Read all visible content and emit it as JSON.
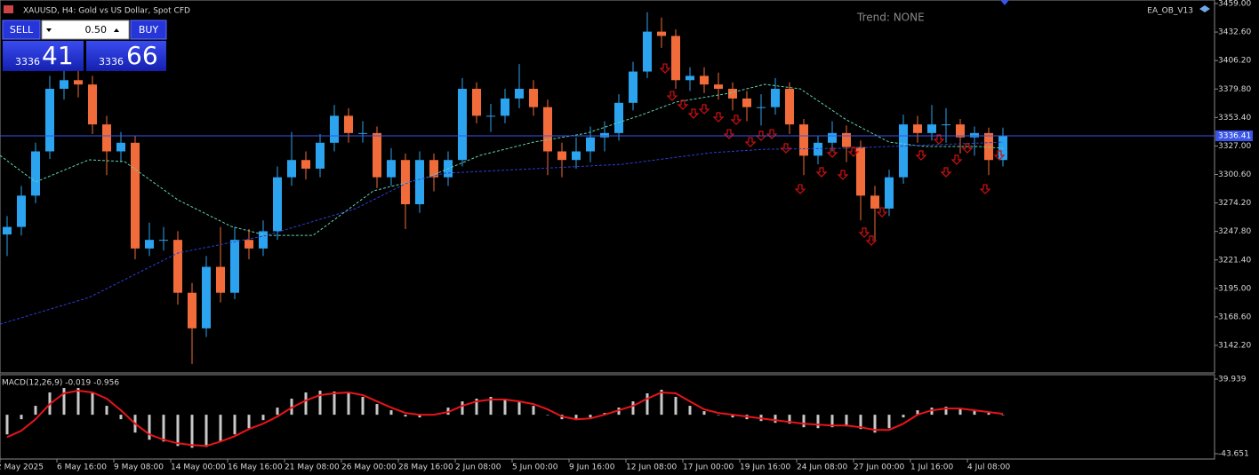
{
  "chart_data": [
    {
      "type": "candlestick",
      "title": "XAUUSD, H4:  Gold vs US Dollar, Spot CFD",
      "annotation": "Trend: NONE",
      "indicator_label": "EA_OB_V13",
      "xlim": [
        0,
        341.5
      ],
      "ylim": [
        3116.7,
        3462.3
      ],
      "yticks": [
        {
          "value": 3459,
          "label": "3459.00"
        },
        {
          "value": 3432.6,
          "label": "3432.60"
        },
        {
          "value": 3406.2,
          "label": "3406.20"
        },
        {
          "value": 3379.8,
          "label": "3379.80"
        },
        {
          "value": 3353.4,
          "label": "3353.40"
        },
        {
          "value": 3327,
          "label": "3327.00"
        },
        {
          "value": 3300.6,
          "label": "3300.60"
        },
        {
          "value": 3274.2,
          "label": "3274.20"
        },
        {
          "value": 3247.8,
          "label": "3247.80"
        },
        {
          "value": 3221.4,
          "label": "3221.40"
        },
        {
          "value": 3195,
          "label": "3195.00"
        },
        {
          "value": 3168.6,
          "label": "3168.60"
        },
        {
          "value": 3142.2,
          "label": "3142.20"
        }
      ],
      "series": [
        {
          "type": "candles",
          "up_color": "#2ba3ee",
          "down_color": "#f26b3a",
          "x": [
            2,
            6,
            10,
            14,
            18,
            22,
            26,
            30,
            34,
            38,
            42,
            46,
            50,
            54,
            58,
            62,
            66,
            70,
            74,
            78,
            82,
            86,
            90,
            94,
            98,
            102,
            106,
            110,
            114,
            118,
            122,
            126,
            130,
            134,
            138,
            142,
            146,
            150,
            154,
            158,
            162,
            166,
            170,
            174,
            178,
            182,
            186,
            190,
            194,
            198,
            202,
            206,
            210,
            214,
            218,
            222,
            226,
            230,
            234,
            238,
            242,
            246,
            250,
            254,
            258,
            262,
            266,
            270,
            274,
            278,
            282
          ],
          "open": [
            3245,
            3252,
            3281,
            3322,
            3380,
            3388,
            3384,
            3347,
            3322,
            3330,
            3232,
            3240,
            3240,
            3191,
            3158,
            3215,
            3191,
            3240,
            3232,
            3248,
            3298,
            3314,
            3306,
            3330,
            3355,
            3339,
            3339,
            3298,
            3314,
            3273,
            3314,
            3298,
            3314,
            3380,
            3355,
            3355,
            3371,
            3380,
            3363,
            3322,
            3314,
            3322,
            3335,
            3339,
            3367,
            3396,
            3433,
            3429,
            3388,
            3392,
            3384,
            3380,
            3371,
            3363,
            3363,
            3380,
            3347,
            3318,
            3330,
            3339,
            3326,
            3281,
            3269,
            3298,
            3347,
            3339,
            3347,
            3347,
            3335,
            3339,
            3314
          ],
          "high": [
            3262,
            3290,
            3330,
            3392,
            3400,
            3398,
            3392,
            3355,
            3340,
            3336,
            3256,
            3252,
            3248,
            3200,
            3225,
            3252,
            3252,
            3250,
            3258,
            3308,
            3340,
            3322,
            3338,
            3365,
            3362,
            3350,
            3345,
            3325,
            3320,
            3322,
            3320,
            3322,
            3390,
            3386,
            3366,
            3380,
            3403,
            3388,
            3370,
            3330,
            3335,
            3345,
            3350,
            3375,
            3405,
            3451,
            3446,
            3435,
            3400,
            3400,
            3395,
            3386,
            3378,
            3375,
            3390,
            3386,
            3352,
            3336,
            3350,
            3346,
            3332,
            3290,
            3305,
            3356,
            3355,
            3365,
            3362,
            3352,
            3345,
            3344,
            3344
          ],
          "low": [
            3225,
            3244,
            3274,
            3315,
            3370,
            3372,
            3338,
            3300,
            3312,
            3222,
            3225,
            3230,
            3180,
            3125,
            3150,
            3182,
            3185,
            3222,
            3225,
            3240,
            3290,
            3296,
            3298,
            3322,
            3330,
            3330,
            3288,
            3290,
            3250,
            3265,
            3285,
            3290,
            3308,
            3348,
            3340,
            3348,
            3362,
            3355,
            3300,
            3298,
            3306,
            3312,
            3322,
            3332,
            3360,
            3390,
            3418,
            3380,
            3378,
            3376,
            3370,
            3360,
            3350,
            3346,
            3356,
            3338,
            3300,
            3310,
            3322,
            3312,
            3258,
            3240,
            3262,
            3292,
            3330,
            3332,
            3330,
            3320,
            3318,
            3300,
            3308
          ],
          "close": [
            3252,
            3281,
            3322,
            3380,
            3388,
            3384,
            3347,
            3322,
            3330,
            3232,
            3240,
            3240,
            3191,
            3158,
            3215,
            3191,
            3240,
            3232,
            3248,
            3298,
            3314,
            3306,
            3330,
            3355,
            3339,
            3339,
            3298,
            3314,
            3273,
            3314,
            3298,
            3314,
            3380,
            3355,
            3355,
            3371,
            3380,
            3363,
            3322,
            3314,
            3322,
            3335,
            3339,
            3367,
            3396,
            3433,
            3429,
            3388,
            3392,
            3384,
            3380,
            3371,
            3363,
            3363,
            3380,
            3347,
            3318,
            3330,
            3339,
            3326,
            3281,
            3269,
            3298,
            3347,
            3339,
            3347,
            3347,
            3335,
            3339,
            3314,
            3336.41
          ]
        },
        {
          "type": "line",
          "color": "#5fd3b0",
          "line_style": "dashed",
          "x": [
            0,
            10,
            25,
            35,
            50,
            65,
            75,
            88,
            105,
            120,
            135,
            150,
            165,
            180,
            190,
            205,
            215,
            225,
            238,
            250,
            260,
            275,
            282
          ],
          "values": [
            3318.3,
            3293.6,
            3314.2,
            3312.5,
            3277.1,
            3252.5,
            3244.2,
            3244.2,
            3285.4,
            3297.7,
            3318.3,
            3330.6,
            3338.9,
            3355.3,
            3367.7,
            3375.9,
            3384.1,
            3380.0,
            3351.2,
            3330.6,
            3326.5,
            3326.5,
            3324.9
          ]
        },
        {
          "type": "line",
          "color": "#2a3fd6",
          "line_style": "dashed",
          "x": [
            0,
            25,
            50,
            75,
            100,
            115,
            125,
            150,
            175,
            200,
            215,
            238,
            250,
            282
          ],
          "values": [
            3161.9,
            3186.6,
            3227.8,
            3244.2,
            3268.9,
            3293.6,
            3301.8,
            3305.9,
            3310.1,
            3320.8,
            3324.0,
            3324.9,
            3326.5,
            3330.6
          ]
        },
        {
          "type": "markers",
          "color": "#d01010",
          "x": [
            187,
            189,
            192,
            195,
            198,
            202,
            205,
            207,
            211,
            214,
            217,
            221,
            225,
            231,
            234,
            237,
            240,
            243,
            245,
            248,
            259,
            264,
            266,
            269,
            272,
            277,
            281
          ],
          "values": [
            3403.0,
            3377.5,
            3369.3,
            3361.1,
            3365.2,
            3357.8,
            3342.1,
            3355.3,
            3334.7,
            3340.5,
            3342.1,
            3329.0,
            3291.1,
            3306.8,
            3324.9,
            3304.3,
            3325.7,
            3250.8,
            3243.4,
            3269.7,
            3322.4,
            3337.2,
            3306.8,
            3318.3,
            3329.0,
            3291.1,
            3322.4
          ]
        },
        {
          "type": "hline",
          "color": "#3a55e8",
          "values": [
            3336.41
          ]
        }
      ]
    },
    {
      "type": "macd",
      "title": "MACD(12,26,9) -0.019 -0.956",
      "xlim": [
        0,
        341.5
      ],
      "ylim": [
        -49.6,
        44.9
      ],
      "yticks": [
        39.939,
        -43.651
      ],
      "xticks": [
        {
          "value": 0,
          "label": "2 May 2025"
        },
        {
          "value": 16,
          "label": "6 May 16:00"
        },
        {
          "value": 32,
          "label": "9 May 08:00"
        },
        {
          "value": 48,
          "label": "14 May 00:00"
        },
        {
          "value": 64,
          "label": "16 May 16:00"
        },
        {
          "value": 80,
          "label": "21 May 08:00"
        },
        {
          "value": 96,
          "label": "26 May 00:00"
        },
        {
          "value": 112,
          "label": "28 May 16:00"
        },
        {
          "value": 128,
          "label": "2 Jun 08:00"
        },
        {
          "value": 144,
          "label": "5 Jun 00:00"
        },
        {
          "value": 160,
          "label": "9 Jun 16:00"
        },
        {
          "value": 176,
          "label": "12 Jun 08:00"
        },
        {
          "value": 192,
          "label": "17 Jun 00:00"
        },
        {
          "value": 208,
          "label": "19 Jun 16:00"
        },
        {
          "value": 224,
          "label": "24 Jun 08:00"
        },
        {
          "value": 240,
          "label": "27 Jun 00:00"
        },
        {
          "value": 256,
          "label": "1 Jul 16:00"
        },
        {
          "value": 272,
          "label": "4 Jul 08:00"
        }
      ],
      "series": [
        {
          "type": "histogram",
          "color": "#c8c8c8",
          "x": [
            2,
            6,
            10,
            14,
            18,
            22,
            26,
            30,
            34,
            38,
            42,
            46,
            50,
            54,
            58,
            62,
            66,
            70,
            74,
            78,
            82,
            86,
            90,
            94,
            98,
            102,
            106,
            110,
            114,
            118,
            122,
            126,
            130,
            134,
            138,
            142,
            146,
            150,
            154,
            158,
            162,
            166,
            170,
            174,
            178,
            182,
            186,
            190,
            194,
            198,
            202,
            206,
            210,
            214,
            218,
            222,
            226,
            230,
            234,
            238,
            242,
            246,
            250,
            254,
            258,
            262,
            266,
            270,
            274,
            278,
            282
          ],
          "values": [
            -22,
            -5,
            10,
            25,
            30,
            30,
            25,
            10,
            -5,
            -20,
            -28,
            -30,
            -35,
            -37,
            -36,
            -30,
            -22,
            -15,
            -6,
            8,
            18,
            25,
            27,
            26,
            24,
            20,
            12,
            5,
            -2,
            -3,
            0,
            8,
            15,
            18,
            20,
            18,
            14,
            10,
            0,
            -5,
            -6,
            -3,
            2,
            8,
            15,
            24,
            28,
            20,
            10,
            4,
            0,
            -3,
            -5,
            -7,
            -9,
            -10,
            -14,
            -15,
            -14,
            -13,
            -16,
            -20,
            -15,
            -3,
            5,
            8,
            9,
            7,
            5,
            2,
            0
          ]
        },
        {
          "type": "line",
          "color": "#e8141a",
          "x": [
            2,
            6,
            10,
            14,
            18,
            22,
            26,
            30,
            34,
            38,
            42,
            46,
            50,
            54,
            58,
            62,
            66,
            70,
            74,
            78,
            82,
            86,
            90,
            94,
            98,
            102,
            106,
            110,
            114,
            118,
            122,
            126,
            130,
            134,
            138,
            142,
            146,
            150,
            154,
            158,
            162,
            166,
            170,
            174,
            178,
            182,
            186,
            190,
            194,
            198,
            202,
            206,
            210,
            214,
            218,
            222,
            226,
            230,
            234,
            238,
            242,
            246,
            250,
            254,
            258,
            262,
            266,
            270,
            274,
            278,
            282
          ],
          "values": [
            -25,
            -18,
            -5,
            12,
            24,
            27,
            25,
            18,
            5,
            -10,
            -22,
            -28,
            -32,
            -34,
            -35,
            -30,
            -24,
            -16,
            -10,
            -2,
            8,
            16,
            22,
            24,
            25,
            22,
            15,
            8,
            2,
            0,
            0,
            3,
            10,
            15,
            17,
            17,
            15,
            12,
            6,
            -2,
            -5,
            -4,
            0,
            5,
            10,
            18,
            25,
            24,
            15,
            6,
            2,
            0,
            -2,
            -4,
            -6,
            -8,
            -10,
            -11,
            -12,
            -12,
            -14,
            -17,
            -17,
            -10,
            0,
            5,
            7,
            7,
            5,
            3,
            1
          ]
        }
      ]
    }
  ],
  "trading_panel": {
    "sell_label": "SELL",
    "buy_label": "BUY",
    "lot": "0.50",
    "sell_price_big": "3336",
    "sell_price_small": "41",
    "buy_price_big": "3336",
    "buy_price_small": "66"
  }
}
